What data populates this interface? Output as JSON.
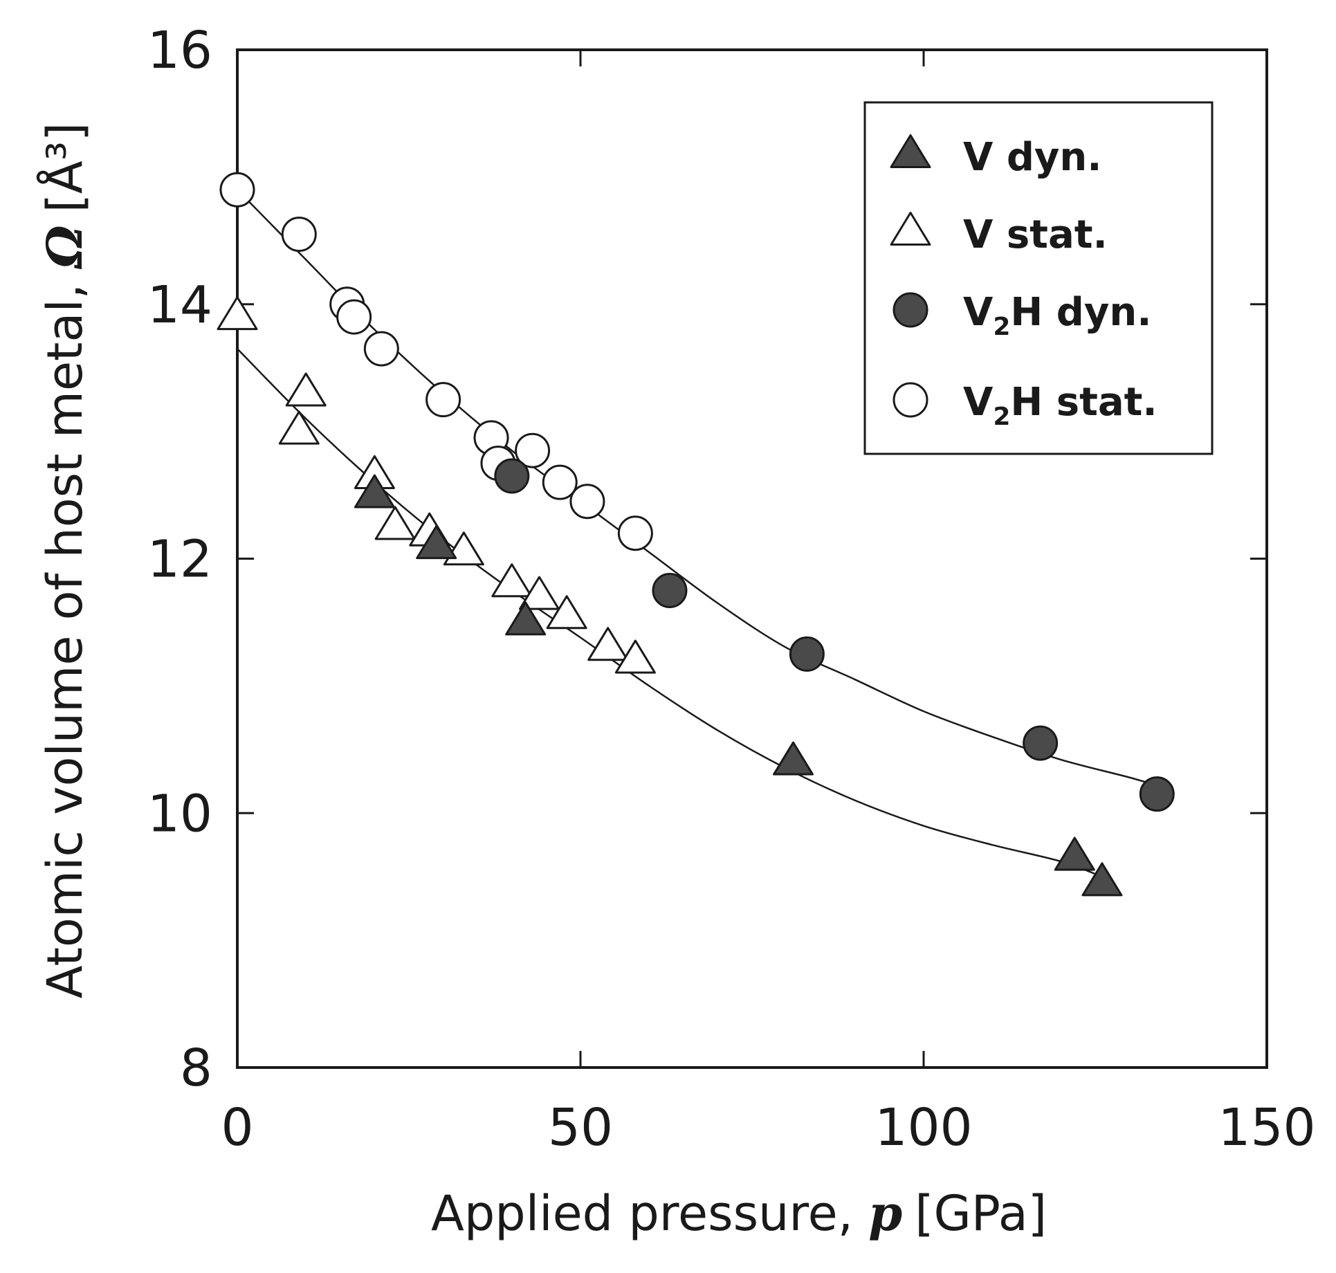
{
  "chart_data": {
    "type": "scatter",
    "title": "",
    "xlabel": {
      "prefix": "Applied pressure, ",
      "variable": "p",
      "unit": "[GPa]"
    },
    "ylabel": {
      "prefix": "Atomic volume of host metal, ",
      "variable": "Ω",
      "unit": "[Å³]"
    },
    "xlim": [
      0,
      150
    ],
    "ylim": [
      8,
      16
    ],
    "xticks": [
      {
        "value": 0,
        "label": "0"
      },
      {
        "value": 50,
        "label": "50"
      },
      {
        "value": 100,
        "label": "100"
      },
      {
        "value": 150,
        "label": "150"
      }
    ],
    "yticks": [
      {
        "value": 8,
        "label": "8"
      },
      {
        "value": 10,
        "label": "10"
      },
      {
        "value": 12,
        "label": "12"
      },
      {
        "value": 14,
        "label": "14"
      },
      {
        "value": 16,
        "label": "16"
      }
    ],
    "grid": false,
    "legend_position": "top-right",
    "series": [
      {
        "name": "V dyn.",
        "label_main": "V",
        "label_sub": "",
        "label_rest": " dyn.",
        "marker": "triangle",
        "filled": true,
        "points": [
          [
            20,
            12.5
          ],
          [
            29,
            12.1
          ],
          [
            42,
            11.5
          ],
          [
            81,
            10.4
          ],
          [
            122,
            9.65
          ],
          [
            126,
            9.45
          ]
        ]
      },
      {
        "name": "V stat.",
        "label_main": "V",
        "label_sub": "",
        "label_rest": " stat.",
        "marker": "triangle",
        "filled": false,
        "points": [
          [
            0,
            13.9
          ],
          [
            9,
            13.0
          ],
          [
            10,
            13.3
          ],
          [
            20,
            12.65
          ],
          [
            23,
            12.25
          ],
          [
            28,
            12.2
          ],
          [
            33,
            12.05
          ],
          [
            40,
            11.8
          ],
          [
            44,
            11.7
          ],
          [
            48,
            11.55
          ],
          [
            54,
            11.3
          ],
          [
            58,
            11.2
          ]
        ]
      },
      {
        "name": "V2H dyn.",
        "label_main": "V",
        "label_sub": "2",
        "label_rest": "H dyn.",
        "marker": "circle",
        "filled": true,
        "points": [
          [
            40,
            12.65
          ],
          [
            63,
            11.75
          ],
          [
            83,
            11.25
          ],
          [
            117,
            10.55
          ],
          [
            134,
            10.15
          ]
        ]
      },
      {
        "name": "V2H stat.",
        "label_main": "V",
        "label_sub": "2",
        "label_rest": "H stat.",
        "marker": "circle",
        "filled": false,
        "points": [
          [
            0,
            14.9
          ],
          [
            9,
            14.55
          ],
          [
            16,
            14.0
          ],
          [
            17,
            13.9
          ],
          [
            21,
            13.65
          ],
          [
            30,
            13.25
          ],
          [
            37,
            12.95
          ],
          [
            38,
            12.75
          ],
          [
            43,
            12.85
          ],
          [
            47,
            12.6
          ],
          [
            51,
            12.45
          ],
          [
            58,
            12.2
          ]
        ]
      }
    ],
    "fit_curves": [
      {
        "name": "V2H fit",
        "points": [
          [
            0,
            14.9
          ],
          [
            10,
            14.35
          ],
          [
            20,
            13.8
          ],
          [
            30,
            13.3
          ],
          [
            40,
            12.85
          ],
          [
            50,
            12.45
          ],
          [
            60,
            12.05
          ],
          [
            70,
            11.65
          ],
          [
            80,
            11.3
          ],
          [
            90,
            11.05
          ],
          [
            100,
            10.8
          ],
          [
            110,
            10.6
          ],
          [
            120,
            10.42
          ],
          [
            130,
            10.28
          ],
          [
            135,
            10.2
          ]
        ]
      },
      {
        "name": "V fit",
        "points": [
          [
            0,
            13.65
          ],
          [
            10,
            13.1
          ],
          [
            20,
            12.6
          ],
          [
            30,
            12.15
          ],
          [
            40,
            11.75
          ],
          [
            50,
            11.38
          ],
          [
            60,
            11.0
          ],
          [
            70,
            10.65
          ],
          [
            80,
            10.35
          ],
          [
            90,
            10.1
          ],
          [
            100,
            9.9
          ],
          [
            110,
            9.75
          ],
          [
            120,
            9.62
          ],
          [
            126,
            9.5
          ]
        ]
      }
    ]
  }
}
